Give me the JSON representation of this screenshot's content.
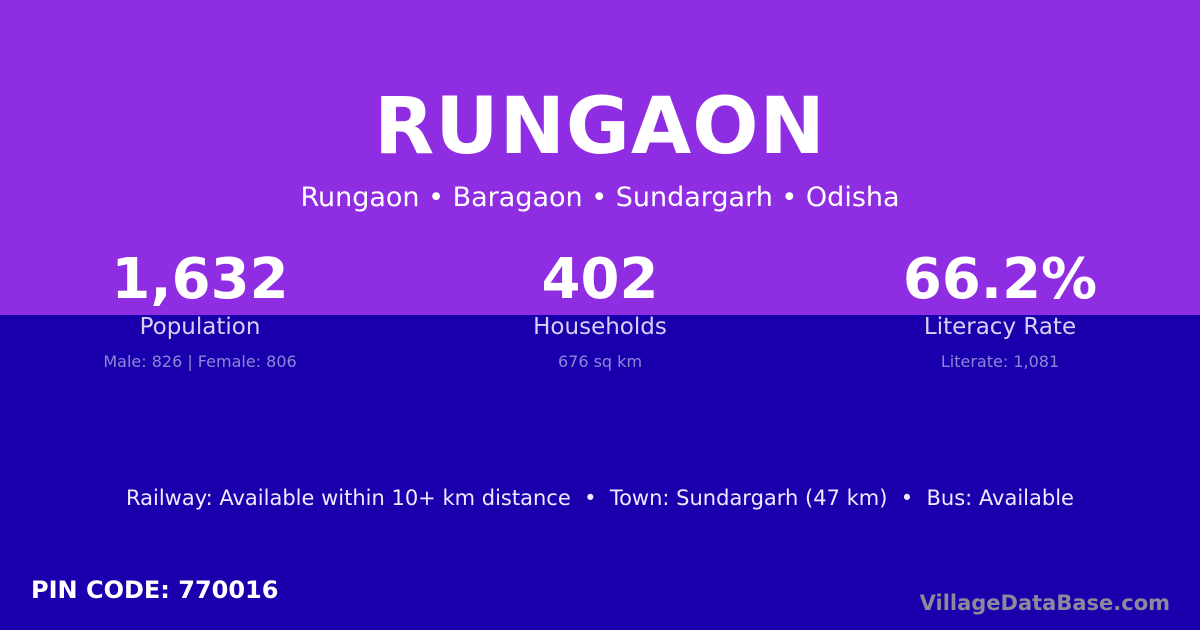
{
  "header": {
    "title": "RUNGAON",
    "breadcrumb": "Rungaon • Baragaon • Sundargarh • Odisha"
  },
  "stats": [
    {
      "value": "1,632",
      "label": "Population",
      "detail": "Male: 826 | Female: 806"
    },
    {
      "value": "402",
      "label": "Households",
      "detail": "676 sq km"
    },
    {
      "value": "66.2%",
      "label": "Literacy Rate",
      "detail": "Literate: 1,081"
    }
  ],
  "info": "Railway: Available within 10+ km distance  •  Town: Sundargarh (47 km)  •  Bus: Available",
  "pin": "PIN CODE: 770016",
  "brand": "VillageDataBase.com",
  "colors": {
    "top": "#8e2de2",
    "bottom": "#1a00ad"
  }
}
